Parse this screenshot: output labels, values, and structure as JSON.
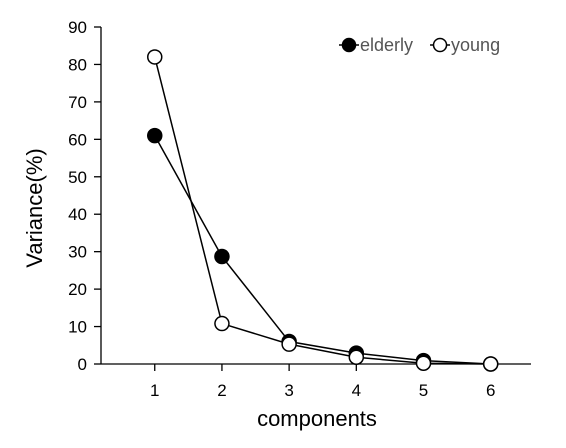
{
  "chart_data": {
    "type": "line",
    "xlabel": "components",
    "ylabel": "Variance(%)",
    "x": [
      1,
      2,
      3,
      4,
      5,
      6
    ],
    "xlim": [
      0.2,
      6.6
    ],
    "ylim": [
      0,
      90
    ],
    "xticks": [
      1,
      2,
      3,
      4,
      5,
      6
    ],
    "yticks": [
      0,
      10,
      20,
      30,
      40,
      50,
      60,
      70,
      80,
      90
    ],
    "grid": false,
    "legend_position": "top-right",
    "series": [
      {
        "name": "elderly",
        "marker": "filled-circle",
        "color": "#000000",
        "values": [
          61,
          28.7,
          6,
          2.9,
          0.9,
          0
        ]
      },
      {
        "name": "young",
        "marker": "open-circle",
        "color": "#000000",
        "values": [
          82,
          10.8,
          5.3,
          1.8,
          0.2,
          0
        ]
      }
    ]
  }
}
